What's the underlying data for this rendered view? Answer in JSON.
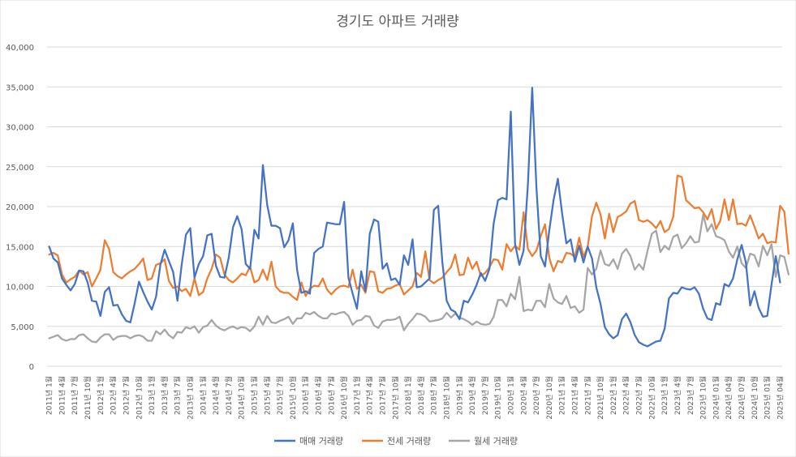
{
  "chart_data": {
    "type": "line",
    "title": "경기도 아파트 거래량",
    "xlabel": "",
    "ylabel": "",
    "ylim": [
      0,
      40000
    ],
    "yticks": [
      "0",
      "5,000",
      "10,000",
      "15,000",
      "20,000",
      "25,000",
      "30,000",
      "35,000",
      "40,000"
    ],
    "grid": true,
    "legend": "bottom",
    "x_tick_labels": [
      "2011년 1월",
      "2011년 4월",
      "2011년 7월",
      "2011년 10월",
      "2012년 1월",
      "2012년 4월",
      "2012년 7월",
      "2012년 10월",
      "2013년 1월",
      "2013년 4월",
      "2013년 7월",
      "2013년 10월",
      "2014년 1월",
      "2014년 4월",
      "2014년 7월",
      "2014년 10월",
      "2015년 1월",
      "2015년 4월",
      "2015년 7월",
      "2015년 10월",
      "2016년 1월",
      "2016년 4월",
      "2016년 7월",
      "2016년 10월",
      "2017년 1월",
      "2017년 4월",
      "2017년 7월",
      "2017년 10월",
      "2018년 1월",
      "2018년 4월",
      "2018년 7월",
      "2018년 10월",
      "2019년 1월",
      "2019년 4월",
      "2019년 7월",
      "2019년 10월",
      "2020년 1월",
      "2020년 4월",
      "2020년 7월",
      "2020년 10월",
      "2021년 1월",
      "2021년 4월",
      "2021년 7월",
      "2021년 10월",
      "2022년 1월",
      "2022년 4월",
      "2022년 7월",
      "2022년 10월",
      "2023년 1월",
      "2023년 4월",
      "2023년 7월",
      "2023년 10월",
      "2024년 01월",
      "2024년 04월",
      "2024년 07월",
      "2024년 10월",
      "2025년 01월",
      "2025년 04월"
    ],
    "series": [
      {
        "name": "매매 거래량",
        "color": "#4472C4",
        "values": [
          15000,
          13500,
          13000,
          11000,
          10200,
          9500,
          10300,
          12000,
          11900,
          10500,
          8200,
          8100,
          6300,
          9300,
          9900,
          7600,
          7700,
          6500,
          5700,
          5500,
          7900,
          10600,
          9300,
          8100,
          7100,
          8700,
          12700,
          14600,
          13200,
          11800,
          8200,
          12700,
          16500,
          17300,
          11100,
          12800,
          13800,
          16400,
          16600,
          12600,
          11200,
          11100,
          13600,
          17400,
          18800,
          17200,
          12800,
          12200,
          17100,
          16000,
          25200,
          20200,
          17600,
          17600,
          17300,
          14900,
          15800,
          17900,
          12100,
          9200,
          9400,
          9100,
          14200,
          14700,
          15000,
          18000,
          17900,
          17800,
          17800,
          20600,
          11100,
          9100,
          7200,
          11900,
          9400,
          16600,
          18400,
          18100,
          12200,
          12900,
          10800,
          11000,
          10200,
          13900,
          12700,
          15900,
          9900,
          10000,
          10500,
          11000,
          19600,
          20100,
          13000,
          8200,
          7100,
          6800,
          5900,
          8200,
          8000,
          9000,
          10200,
          11700,
          10700,
          12200,
          17900,
          20800,
          21100,
          20900,
          31900,
          15300,
          12700,
          14500,
          22800,
          34900,
          22400,
          13800,
          12500,
          17000,
          20800,
          23500,
          19200,
          15400,
          15900,
          13100,
          15100,
          13000,
          15000,
          13500,
          9900,
          7800,
          4900,
          4000,
          3500,
          3900,
          5900,
          6600,
          5500,
          3900,
          3000,
          2700,
          2500,
          2800,
          3100,
          3200,
          4700,
          8500,
          9200,
          9100,
          9900,
          9700,
          9600,
          9900,
          9100,
          7200,
          6000,
          5800,
          7900,
          7700,
          10300,
          10000,
          11000,
          13400,
          15200,
          13000,
          7600,
          9400,
          7300,
          6200,
          6300,
          10200,
          13800,
          10500
        ]
      },
      {
        "name": "전세 거래량",
        "color": "#ED7D31",
        "values": [
          14000,
          14200,
          13900,
          11500,
          10500,
          10900,
          11200,
          12000,
          11500,
          11800,
          10000,
          11000,
          12100,
          15800,
          14700,
          11800,
          11300,
          11000,
          11500,
          11900,
          12200,
          12800,
          13500,
          10800,
          11000,
          12700,
          12900,
          13400,
          10700,
          9800,
          10000,
          9400,
          9700,
          8800,
          11000,
          8900,
          9300,
          11000,
          12200,
          14000,
          13600,
          11500,
          10800,
          10500,
          11000,
          11600,
          11400,
          12500,
          10500,
          10800,
          12100,
          10800,
          13100,
          10000,
          9400,
          9200,
          9200,
          8700,
          8300,
          10500,
          8800,
          9700,
          10100,
          10000,
          11000,
          9600,
          9000,
          9600,
          10000,
          10100,
          9900,
          12100,
          9700,
          10200,
          9200,
          11900,
          11800,
          9400,
          9200,
          9700,
          9800,
          10100,
          10300,
          9000,
          9500,
          10000,
          11700,
          11200,
          14400,
          10800,
          10400,
          10800,
          11100,
          11800,
          12400,
          14000,
          11400,
          11500,
          13600,
          12200,
          13100,
          11300,
          11700,
          12400,
          13400,
          13300,
          12100,
          15300,
          14400,
          15100,
          14600,
          19300,
          14700,
          13800,
          14500,
          16300,
          17800,
          13600,
          11900,
          13200,
          13000,
          14200,
          14100,
          13700,
          16100,
          13700,
          15000,
          18800,
          20500,
          19000,
          16000,
          19100,
          16800,
          18700,
          19000,
          19400,
          20400,
          20700,
          18300,
          18100,
          18300,
          17900,
          17300,
          18200,
          16800,
          17200,
          18700,
          23900,
          23700,
          20800,
          20300,
          19800,
          19900,
          19300,
          18400,
          19700,
          17200,
          18200,
          20900,
          18300,
          20900,
          17800,
          17900,
          17600,
          18900,
          17500,
          16000,
          16600,
          15400,
          15600,
          15500,
          20100,
          19400,
          14100
        ]
      },
      {
        "name": "월세 거래량",
        "color": "#A5A5A5",
        "values": [
          3500,
          3700,
          3900,
          3400,
          3200,
          3400,
          3400,
          3900,
          4000,
          3500,
          3100,
          3000,
          3600,
          4000,
          4000,
          3300,
          3700,
          3800,
          3800,
          3500,
          3800,
          3900,
          3700,
          3200,
          3200,
          4400,
          4000,
          4600,
          3900,
          3500,
          4300,
          4200,
          4900,
          4700,
          5000,
          4200,
          4900,
          5100,
          5800,
          5100,
          4700,
          4500,
          4800,
          5000,
          4700,
          4900,
          4800,
          4400,
          5000,
          6200,
          5200,
          6300,
          5500,
          5400,
          5700,
          5900,
          6200,
          5300,
          6000,
          6000,
          6700,
          6500,
          6800,
          6300,
          6000,
          6000,
          6600,
          6500,
          6700,
          6800,
          6300,
          5200,
          5700,
          5800,
          6300,
          6200,
          5100,
          4800,
          5600,
          5800,
          5800,
          5900,
          6200,
          4500,
          5300,
          5900,
          6600,
          6500,
          6200,
          5600,
          5700,
          5800,
          6000,
          6700,
          6100,
          6600,
          6100,
          5900,
          5600,
          5200,
          5600,
          5300,
          5200,
          5300,
          6200,
          8300,
          8300,
          7500,
          9100,
          8400,
          11200,
          6900,
          7100,
          7000,
          8200,
          8200,
          7400,
          10300,
          8500,
          8000,
          7800,
          8800,
          7300,
          7500,
          6700,
          7100,
          12300,
          11500,
          12200,
          14500,
          12800,
          12600,
          13400,
          12200,
          14100,
          14700,
          13800,
          12100,
          12800,
          12100,
          14500,
          16600,
          17000,
          14300,
          15100,
          14600,
          16200,
          16500,
          14800,
          15400,
          16300,
          15500,
          15600,
          19000,
          16900,
          17800,
          16300,
          16100,
          15800,
          14400,
          13600,
          15000,
          12900,
          12300,
          14100,
          13900,
          12500,
          15100,
          13900,
          15300,
          11200,
          13900,
          13700,
          11500
        ]
      }
    ]
  }
}
